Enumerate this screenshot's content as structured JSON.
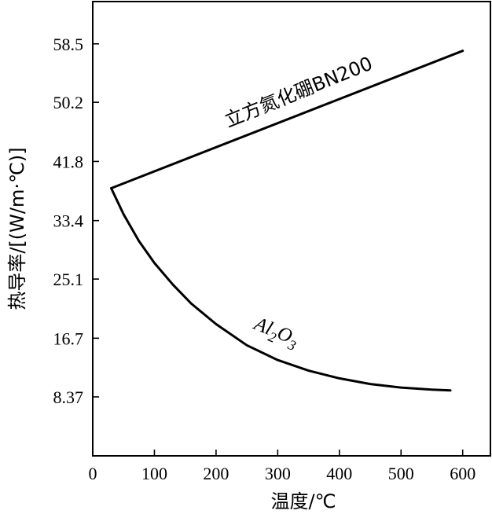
{
  "chart_data": {
    "type": "line",
    "xlabel": "温度/℃",
    "ylabel": "热导率/[(W/m·℃)]",
    "xlim": [
      0,
      645
    ],
    "ylim": [
      0,
      64.5
    ],
    "x_ticks": [
      0,
      100,
      200,
      300,
      400,
      500,
      600
    ],
    "y_ticks": [
      8.37,
      16.7,
      25.1,
      33.4,
      41.8,
      50.2,
      58.5
    ],
    "grid": false,
    "legend": "none",
    "series": [
      {
        "name": "立方氮化硼BN200",
        "x": [
          30,
          600
        ],
        "y": [
          38.0,
          57.5
        ]
      },
      {
        "name": "Al2O3",
        "x": [
          30,
          50,
          75,
          100,
          130,
          160,
          200,
          250,
          300,
          350,
          400,
          450,
          500,
          550,
          580
        ],
        "y": [
          38.0,
          34.3,
          30.5,
          27.4,
          24.3,
          21.6,
          18.7,
          15.7,
          13.6,
          12.1,
          11.0,
          10.2,
          9.7,
          9.4,
          9.3
        ]
      }
    ],
    "annotations": [
      {
        "text": "立方氮化硼BN200",
        "series": 0
      },
      {
        "text_main_1": "Al",
        "text_sub_1": "2",
        "text_main_2": "O",
        "text_sub_2": "3",
        "series": 1
      }
    ]
  }
}
